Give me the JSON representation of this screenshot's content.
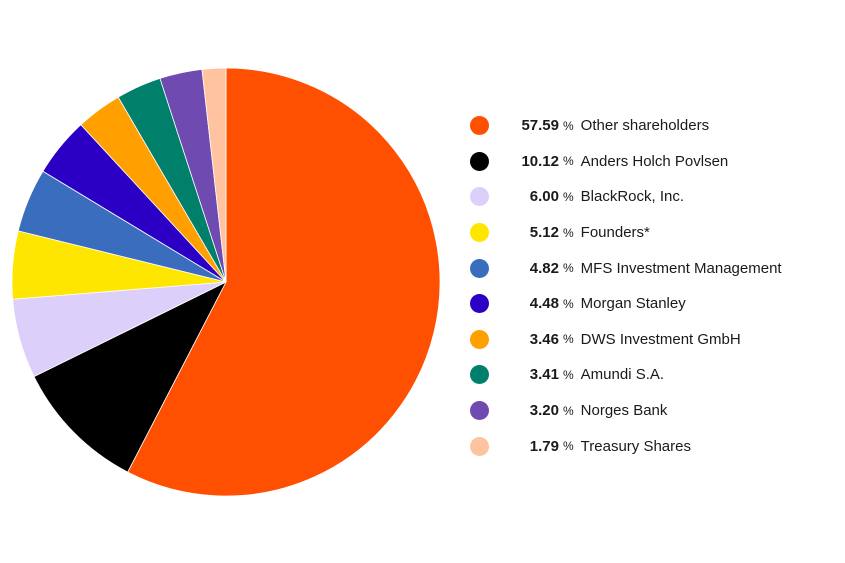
{
  "chart_data": {
    "type": "pie",
    "unit": "%",
    "slices": [
      {
        "label": "Other shareholders",
        "value": 57.59,
        "color": "#ff4f00"
      },
      {
        "label": "Anders Holch Povlsen",
        "value": 10.12,
        "color": "#000000"
      },
      {
        "label": "BlackRock, Inc.",
        "value": 6.0,
        "value_text": "6.00",
        "color": "#dcd0fa"
      },
      {
        "label": "Founders*",
        "value": 5.12,
        "color": "#ffe600"
      },
      {
        "label": "MFS Investment Management",
        "value": 4.82,
        "color": "#3b6dbf"
      },
      {
        "label": "Morgan Stanley",
        "value": 4.48,
        "color": "#2b00c4"
      },
      {
        "label": "DWS Investment GmbH",
        "value": 3.46,
        "color": "#ffa000"
      },
      {
        "label": "Amundi S.A.",
        "value": 3.41,
        "color": "#00806b"
      },
      {
        "label": "Norges Bank",
        "value": 3.2,
        "value_text": "3.20",
        "color": "#6f4ab0"
      },
      {
        "label": "Treasury Shares",
        "value": 1.79,
        "color": "#ffc3a0"
      }
    ],
    "legend_position": "right"
  }
}
